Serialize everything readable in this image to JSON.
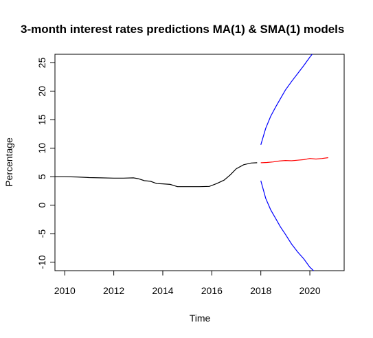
{
  "chart_data": {
    "type": "line",
    "title": "3-month interest rates predictions MA(1) & SMA(1) models",
    "xlabel": "Time",
    "ylabel": "Percentage",
    "xlim": [
      2009.6,
      2021.4
    ],
    "ylim": [
      -11.5,
      26.5
    ],
    "x_ticks": [
      2010,
      2012,
      2014,
      2016,
      2018,
      2020
    ],
    "y_ticks": [
      -10,
      -5,
      0,
      5,
      10,
      15,
      20,
      25
    ],
    "x_tick_labels": [
      "2010",
      "2012",
      "2014",
      "2016",
      "2018",
      "2020"
    ],
    "y_tick_labels": [
      "-10",
      "-5",
      "0",
      "5",
      "10",
      "15",
      "20",
      "25"
    ],
    "grid": false,
    "series": [
      {
        "color": "#000000",
        "x": [
          2009.6,
          2010.0,
          2010.5,
          2011.0,
          2011.5,
          2012.0,
          2012.4,
          2012.8,
          2013.0,
          2013.25,
          2013.5,
          2013.75,
          2014.0,
          2014.3,
          2014.6,
          2015.0,
          2015.5,
          2015.9,
          2016.2,
          2016.5,
          2016.75,
          2017.0,
          2017.3,
          2017.6,
          2017.85
        ],
        "y": [
          5.0,
          5.0,
          4.95,
          4.85,
          4.8,
          4.75,
          4.75,
          4.8,
          4.65,
          4.3,
          4.2,
          3.8,
          3.75,
          3.65,
          3.25,
          3.25,
          3.25,
          3.3,
          3.8,
          4.4,
          5.3,
          6.4,
          7.1,
          7.4,
          7.45
        ]
      },
      {
        "color": "#ff0000",
        "x": [
          2018.0,
          2018.25,
          2018.5,
          2018.75,
          2019.0,
          2019.25,
          2019.5,
          2019.75,
          2020.0,
          2020.25,
          2020.5,
          2020.75
        ],
        "y": [
          7.45,
          7.5,
          7.6,
          7.75,
          7.85,
          7.8,
          7.9,
          8.0,
          8.2,
          8.1,
          8.2,
          8.35
        ]
      },
      {
        "color": "#0000ff",
        "x": [
          2018.0,
          2018.2,
          2018.4,
          2018.6,
          2018.8,
          2019.0,
          2019.25,
          2019.5,
          2019.75,
          2020.0,
          2020.15
        ],
        "y": [
          10.6,
          13.5,
          15.6,
          17.2,
          18.7,
          20.2,
          21.7,
          23.1,
          24.5,
          26.0,
          26.8
        ]
      },
      {
        "color": "#0000ff",
        "x": [
          2018.0,
          2018.2,
          2018.4,
          2018.6,
          2018.8,
          2019.0,
          2019.25,
          2019.5,
          2019.75,
          2020.0,
          2020.25
        ],
        "y": [
          4.3,
          1.2,
          -0.8,
          -2.3,
          -3.8,
          -5.1,
          -6.8,
          -8.2,
          -9.4,
          -10.9,
          -11.9
        ]
      }
    ]
  }
}
